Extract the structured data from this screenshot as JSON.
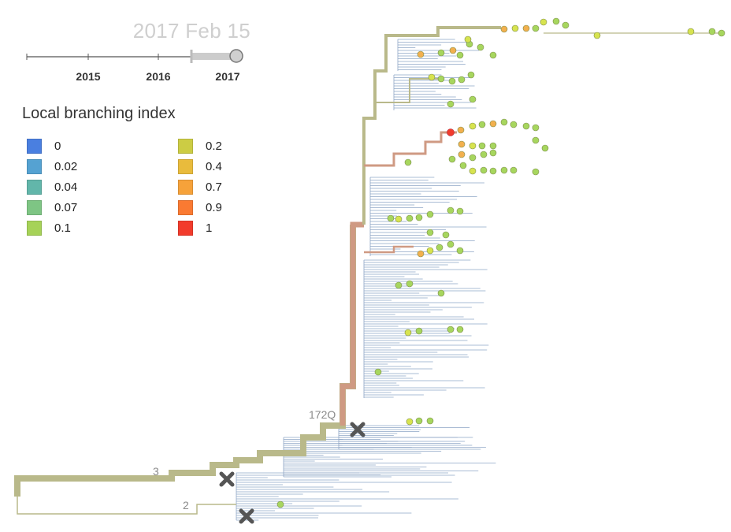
{
  "header": {
    "date_readout": "2017 Feb 15"
  },
  "timeline": {
    "year_labels": [
      "2015",
      "2016",
      "2017"
    ],
    "track_color": "#555555",
    "selection_color": "#cccccc"
  },
  "legend": {
    "title": "Local branching index",
    "items": [
      {
        "label": "0",
        "color": "#4a7fe0"
      },
      {
        "label": "0.02",
        "color": "#55a2d2"
      },
      {
        "label": "0.04",
        "color": "#62b6aa"
      },
      {
        "label": "0.07",
        "color": "#7ec584"
      },
      {
        "label": "0.1",
        "color": "#a6d258"
      },
      {
        "label": "0.2",
        "color": "#cccc44"
      },
      {
        "label": "0.4",
        "color": "#e9bb3c"
      },
      {
        "label": "0.7",
        "color": "#f6a23a"
      },
      {
        "label": "0.9",
        "color": "#fa7a32"
      },
      {
        "label": "1",
        "color": "#f23b2c"
      }
    ]
  },
  "tree": {
    "branch_labels": [
      "172Q",
      "3",
      "2"
    ],
    "colors": {
      "trunk": "#b9b98a",
      "trunk_highlight": "#cf9a83",
      "tip_branch": "#8ea6c6",
      "tip_high": "#f2b04e",
      "tip_mid": "#d7e34f",
      "tip_low": "#a7d65e",
      "marker": "#555555"
    }
  }
}
